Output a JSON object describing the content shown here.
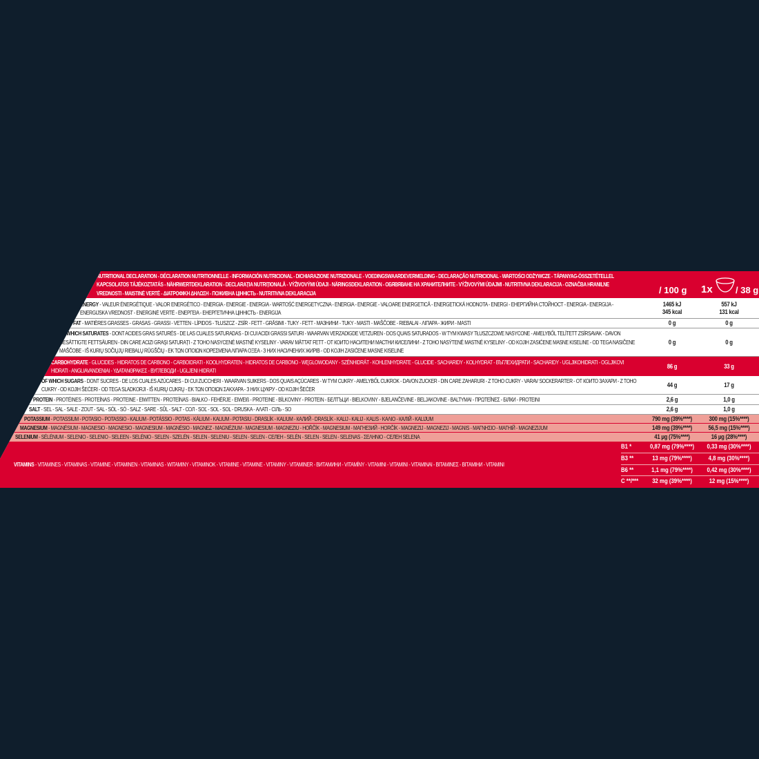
{
  "colors": {
    "background": "#0f1e2c",
    "brand_red": "#d9002f",
    "mineral_pink": "#ef9f98"
  },
  "header": {
    "title": "NUTRITIONAL DECLARATION - DÉCLARATION NUTRITIONNELLE - INFORMACIÓN NUTRICIONAL - DICHIARAZIONE NUTRIZIONALE - VOEDINGSWAARDEVERMELDING - DECLARAÇÃO NUTRICIONAL - WARTOŚCI ODŻYWCZE - TÁPANYAG-ÖSSZETÉTELLEL KAPCSOLATOS TÁJÉKOZTATÁS - NÄHRWERTDEKLARATION - DECLARAȚIA NUTRIȚIONALĂ - VÝŽIVOVÝMI ÚDAJI - NÄRINGSDEKLARATION - ОБЯВЯВАНЕ НА ХРАНИТЕЛНИТЕ - VÝŽIVOVÝMI ÚDAJMI - NUTRITIVNA DEKLARACIJA - OZNAČBA HRANILNE VREDNOSTI - MAISTINĖ VERTĖ - ΔΙΑΤΡΟΦΙΚΗ ΔΗΛΩΣΗ - ПОЖИВНА ЦІННІСТЬ - NUTRITIVNA DEKLARACIJA",
    "col1": "/ 100 g",
    "col2_prefix": "1x",
    "col2_icon": "bowl-icon",
    "col2": "/ 38 g"
  },
  "rows": [
    {
      "head": "ENERGY",
      "rest": " - VALEUR ÉNERGÉTIQUE - VALOR ENERGÉTICO - ENERGIA - ENERGIE - ENERGIA - WARTOŚĆ ENERGETYCZNA - ENERGIA - ENERGIE - VALOARE ENERGETICĂ - ENERGETICKÁ HODNOTA - ENERGI - ЕНЕРГИЙНА СТОЙНОСТ - ENERGIA - ENERGIJA - ENERGIJSKA VREDNOST - ENERGINĖ VERTĖ - ΕΝΕΡΓΕΙΑ - ЕНЕРГЕТИЧНА ЦІННІСТЬ - ENERGIJA",
      "v1": "1465 kJ",
      "v1b": "345 kcal",
      "v2": "557 kJ",
      "v2b": "131 kcal"
    },
    {
      "head": "FAT",
      "rest": " - MATIÈRES GRASSES - GRASAS - GRASSI - VETTEN - LÍPIDOS - TŁUSZCZ - ZSÍR - FETT - GRĂSIMI - TUKY - FETT - МАЗНИНИ - TUKY - MASTI - MAŠČOBE - RIEBALAI - ΛΙΠΑΡΑ - ЖИРИ - MASTI",
      "v1": "0 g",
      "v2": "0 g"
    },
    {
      "head": "OF WHICH SATURATES",
      "rest": " - DONT ACIDES GRAS SATURÉS - DE LAS CUALES SATURADAS - DI CUI ACIDI GRASSI SATURI - WAARVAN VERZADIGDE VETZUREN - DOS QUAIS SATURADOS - W TYM KWASY TŁUSZCZOWE NASYCONE - AMELYBŐL TELÍTETT ZSÍRSAVAK - DAVON GESÄTTIGTE FETTSÄUREN - DIN CARE ACIZI GRAȘI SATURAȚI - Z TOHO NASYCENÉ MASTNÉ KYSELINY - VARAV MÄTTAT FETT - ОТ КОИТО НАСИТЕНИ МАСТНИ КИСЕЛИНИ - Z TOHO NASÝTENÉ MASTNÉ KYSELINY - OD KOJIH ZASIĆENE MASNE KISELINE - OD TEGA NASIČENE MAŠČOBE - IŠ KURIŲ SOČIŲJŲ RIEBALŲ RŪGŠČIŲ - ΕΚ ΤΩΝ ΟΠΟΙΩΝ ΚΟΡΕΣΜΕΝΑ ΛΙΠΑΡΑ ΟΞΕΑ - З НИХ НАСИЧЕНИХ ЖИРІВ - OD KOJIH ZASIĆENE MASNE KISELINE",
      "v1": "0 g",
      "v2": "0 g"
    },
    {
      "head": "CARBOHYDRATE",
      "rest": " - GLUCIDES - HIDRATOS DE CARBONO - CARBOIDRATI - KOOLHYDRATEN - HIDRATOS DE CARBONO - WĘGLOWODANY - SZÉNHIDRÁT - KOHLENHYDRATE - GLUCIDE - SACHARIDY - KOLHYDRAT - ВЪГЛЕХИДРАТИ - SACHARIDY - UGLJIKOHIDRATI - OGLJIKOVI HIDRATI - ANGLIAVANDENIAI - ΥΔΑΤΑΝΘΡΑΚΕΣ - ВУГЛЕВОДИ - UGLJENI HIDRATI",
      "v1": "86 g",
      "v2": "33 g"
    },
    {
      "head": "OF WHICH SUGARS",
      "rest": " - DONT SUCRES - DE LOS CUALES AZÚCARES - DI CUI ZUCCHERI - WAARVAN SUIKERS - DOS QUAIS AÇÚCARES - W TYM CUKRY - AMELYBŐL CUKROK - DAVON ZUCKER - DIN CARE ZAHARURI - Z TOHO CUKRY - VARAV SOCKERARTER - ОТ КОИТО ЗАХАРИ - Z TOHO CUKRY - OD KOJIH ŠEĆERI - OD TEGA SLADKORJI - IŠ KURIŲ CUKRŲ - ΕΚ ΤΩΝ ΟΠΟΙΩΝ ΣΑΚΧΑΡΑ - З НИХ ЦУКРУ - OD KOJIH ŠEĆER",
      "v1": "44 g",
      "v2": "17 g"
    },
    {
      "head": "PROTEIN",
      "rest": " - PROTÉINES - PROTEÍNAS - PROTEINE - EIWITTEN - PROTEÍNAS - BIAŁKO - FEHÉRJE - EIWEIß - PROTEINE - BÍLKOVINY - PROTEIN - БЕЛТЪЦИ - BIELKOVINY - BJELANČEVINE - BELJAKOVINE - BALTYMAI - ΠΡΩΤΕΪΝΕΣ - БІЛКИ - PROTEINI",
      "v1": "2,6 g",
      "v2": "1,0 g"
    },
    {
      "head": "SALT",
      "rest": " - SEL - SAL - SALE - ZOUT - SAL - SÓL - SÓ - SALZ - SARE - SŮL - SALT - СОЛ - SOĽ - SOL - SOL - DRUSKA - ΑΛΑΤΙ - СІЛЬ - SO",
      "v1": "2,6 g",
      "v2": "1,0 g"
    },
    {
      "head": "POTASSIUM",
      "rest": " - POTASSIUM - POTASIO - POTASSIO - KALIUM - POTÁSSIO - POTAS - KÁLIUM - KALIUM - POTASIU - DRASLÍK - KALIUM - КАЛИЙ - DRASLÍK - KALIJ - KALIJ - KALIS - ΚΑΛΙΟ - КАЛІЙ - KALIJUM",
      "v1": "790 mg (39%****)",
      "v2": "300 mg (15%****)"
    },
    {
      "head": "MAGNESIUM",
      "rest": " - MAGNÉSIUM - MAGNESIO - MAGNESIO - MAGNESIUM - MAGNÉSIO - MAGNEZ - MAGNÉZIUM - MAGNESIUM - MAGNEZIU - HOŘČÍK - MAGNESIUM - МАГНЕЗИЙ - HORČÍK - MAGNEZIJ - MAGNEZIJ - MAGNIS - ΜΑΓΝΗΣΙΟ - МАГНІЙ - MAGNEZIJUM",
      "v1": "149 mg (39%****)",
      "v2": "56,5 mg (15%****)"
    },
    {
      "head": "SELENIUM",
      "rest": " - SÉLÉNIUM - SELENIO - SELENIO - SELEEN - SELÉNIO - SELEN - SZELÉN - SELEN - SELENIU - SELEN - SELEN - СЕЛЕН - SELÉN - SELEN - SELEN - SELENAS - ΣΕΛΗΝΙΟ - СЕЛЕН SELENA",
      "v1": "41 µg (75%****)",
      "v2": "16 µg (28%****)"
    }
  ],
  "vitamins": {
    "head": "VITAMINS",
    "rest": " - VITAMINES - VITAMINAS - VITAMINE - VITAMINEN - VITAMINAS - WITAMINY - VITAMINOK - VITAMINE - VITAMINE - VITAMINY - VITAMINER - ВИТАМИНИ - VITAMÍNY - VITAMINI - VITAMINI - VITAMINAI - ΒΙΤΑΜΙΝΕΣ - ВІТАМІНИ - VITAMINI",
    "items": [
      {
        "name": "B1 *",
        "v1": "0,87 mg (79%****)",
        "v2": "0,33 mg (30%****)"
      },
      {
        "name": "B3 **",
        "v1": "13 mg (79%****)",
        "v2": "4,8 mg (30%****)"
      },
      {
        "name": "B6 **",
        "v1": "1,1 mg (79%****)",
        "v2": "0,42 mg (30%****)"
      },
      {
        "name": "C **/***",
        "v1": "32 mg (39%****)",
        "v2": "12 mg (15%****)"
      }
    ]
  }
}
